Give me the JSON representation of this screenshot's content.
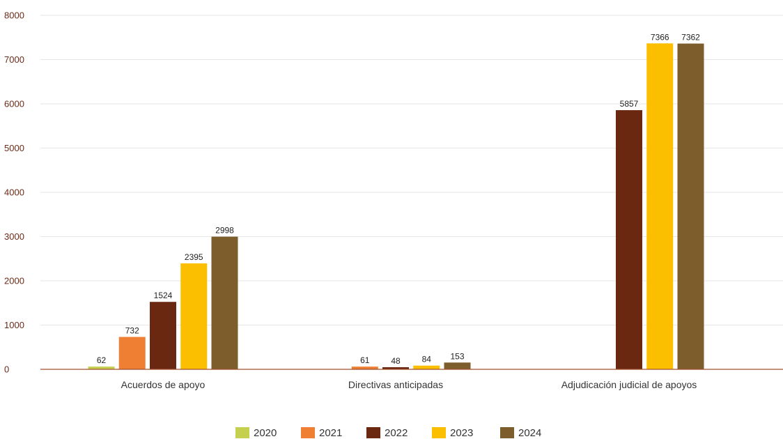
{
  "chart_data": {
    "type": "bar",
    "categories": [
      "Acuerdos de apoyo",
      "Directivas anticipadas",
      "Adjudicación judicial de apoyos"
    ],
    "series": [
      {
        "name": "2020",
        "color": "#c5d04f",
        "values": [
          62,
          null,
          null
        ]
      },
      {
        "name": "2021",
        "color": "#ee7f33",
        "values": [
          732,
          61,
          null
        ]
      },
      {
        "name": "2022",
        "color": "#6a2810",
        "values": [
          1524,
          48,
          5857
        ]
      },
      {
        "name": "2023",
        "color": "#fbbf00",
        "values": [
          2395,
          84,
          7366
        ]
      },
      {
        "name": "2024",
        "color": "#7d5d2b",
        "values": [
          2998,
          153,
          7362
        ]
      }
    ],
    "ylim": [
      0,
      8000
    ],
    "yticks": [
      0,
      1000,
      2000,
      3000,
      4000,
      5000,
      6000,
      7000,
      8000
    ],
    "grid": true,
    "legend_position": "bottom",
    "axis_color": "#a0522d",
    "grid_color": "#e6e6e6"
  }
}
